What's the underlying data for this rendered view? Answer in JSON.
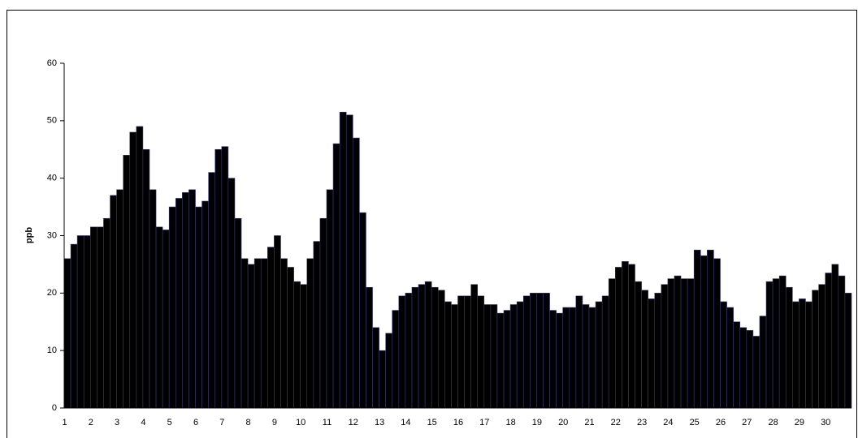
{
  "chart_data": {
    "type": "bar",
    "y_label": "ppb",
    "categories": [
      "1",
      null,
      null,
      null,
      "2",
      null,
      null,
      null,
      "3",
      null,
      null,
      null,
      "4",
      null,
      null,
      null,
      "5",
      null,
      null,
      null,
      "6",
      null,
      null,
      null,
      "7",
      null,
      null,
      null,
      "8",
      null,
      null,
      null,
      "9",
      null,
      null,
      null,
      "10",
      null,
      null,
      null,
      "11",
      null,
      null,
      null,
      "12",
      null,
      null,
      null,
      "13",
      null,
      null,
      null,
      "14",
      null,
      null,
      null,
      "15",
      null,
      null,
      null,
      "16",
      null,
      null,
      null,
      "17",
      null,
      null,
      null,
      "18",
      null,
      null,
      null,
      "19",
      null,
      null,
      null,
      "20",
      null,
      null,
      null,
      "21",
      null,
      null,
      null,
      "22",
      null,
      null,
      null,
      "23",
      null,
      null,
      null,
      "24",
      null,
      null,
      null,
      "25",
      null,
      null,
      null,
      "26",
      null,
      null,
      null,
      "27",
      null,
      null,
      null,
      "28",
      null,
      null,
      null,
      "29",
      null,
      null,
      null,
      "30",
      null,
      null,
      null
    ],
    "values": [
      26,
      28.5,
      30,
      30,
      31.5,
      31.5,
      33,
      37,
      38,
      44,
      48,
      49,
      45,
      38,
      31.5,
      31,
      35,
      36.5,
      37.5,
      38,
      35,
      36,
      41,
      45,
      45.5,
      40,
      33,
      26,
      25,
      26,
      26,
      28,
      30,
      26,
      24.5,
      22,
      21.5,
      26,
      29,
      33,
      38,
      46,
      51.5,
      51,
      47,
      34,
      21,
      14,
      10,
      13,
      17,
      19.5,
      20,
      21,
      21.5,
      22,
      21,
      20.5,
      18.5,
      18,
      19.5,
      19.5,
      21.5,
      19.5,
      18,
      18,
      16.5,
      17,
      18,
      18.5,
      19.5,
      20,
      20,
      20,
      17,
      16.5,
      17.5,
      17.5,
      19.5,
      18,
      17.5,
      18.5,
      19.5,
      22.5,
      24.5,
      25.5,
      25,
      22,
      20.5,
      19,
      20,
      21.5,
      22.5,
      23,
      22.5,
      22.5,
      27.5,
      26.5,
      27.5,
      26,
      18.5,
      17.5,
      15,
      14,
      13.5,
      12.5,
      16,
      22,
      22.5,
      23,
      21,
      18.5,
      19,
      18.5,
      20.5,
      21.5,
      23.5,
      25,
      23,
      20
    ],
    "color": "#000000",
    "ylim": [
      0,
      60
    ],
    "yticks": [
      0,
      10,
      20,
      30,
      40,
      50,
      60
    ]
  }
}
